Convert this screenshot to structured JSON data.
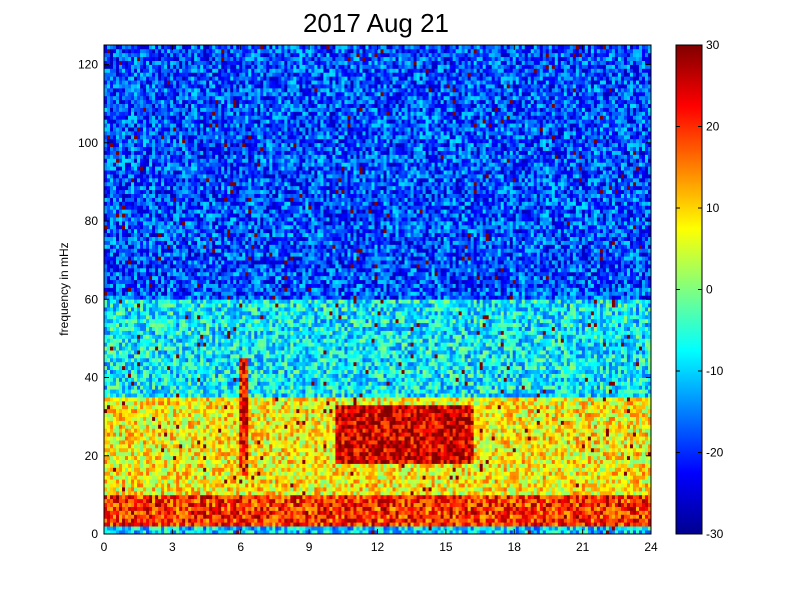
{
  "chart_data": {
    "type": "heatmap",
    "title": "2017 Aug 21",
    "xlabel": "",
    "ylabel": "frequency in mHz",
    "xlim": [
      0,
      24
    ],
    "ylim": [
      0,
      125
    ],
    "xticks": [
      "0",
      "3",
      "6",
      "9",
      "12",
      "15",
      "18",
      "21",
      "24"
    ],
    "yticks": [
      "0",
      "20",
      "40",
      "60",
      "80",
      "100",
      "120"
    ],
    "colorbar": {
      "min": -30,
      "max": 30,
      "ticks": [
        "30",
        "20",
        "10",
        "0",
        "-10",
        "-20",
        "-30"
      ],
      "colormap": "jet"
    },
    "bands": [
      {
        "freq_range": [
          0,
          2
        ],
        "value_dB": -10
      },
      {
        "freq_range": [
          2,
          10
        ],
        "value_dB": 20
      },
      {
        "freq_range": [
          10,
          35
        ],
        "value_dB": 8
      },
      {
        "freq_range": [
          35,
          60
        ],
        "value_dB": -8
      },
      {
        "freq_range": [
          60,
          125
        ],
        "value_dB": -18
      }
    ],
    "hotspots": [
      {
        "time_range": [
          10.2,
          16.2
        ],
        "freq_range": [
          18,
          33
        ],
        "value_dB": 25
      },
      {
        "time_range": [
          6.0,
          6.3
        ],
        "freq_range": [
          15,
          45
        ],
        "value_dB": 22
      }
    ]
  }
}
